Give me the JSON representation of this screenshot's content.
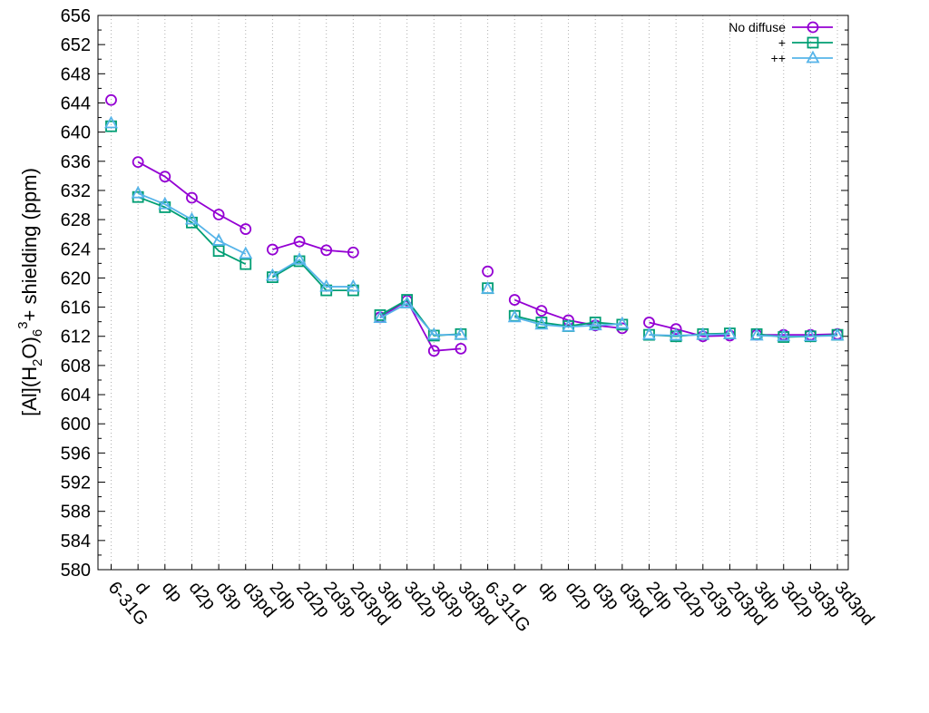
{
  "chart_data": {
    "type": "line",
    "title": "",
    "xlabel": "",
    "ylabel": {
      "base": "[Al](H",
      "sub1": "2",
      "mid": "O)",
      "sub2": "6",
      "sup": "3",
      "tail": "+ shielding (ppm)"
    },
    "ylim": [
      580,
      656
    ],
    "ytick_step": 4,
    "grid": "vertical dotted",
    "legend_position": "top-right",
    "categories": [
      "6-31G",
      "d",
      "dp",
      "d2p",
      "d3p",
      "d3pd",
      "2dp",
      "2d2p",
      "2d3p",
      "2d3pd",
      "3dp",
      "3d2p",
      "3d3p",
      "3d3pd",
      "6-311G",
      "d",
      "dp",
      "d2p",
      "d3p",
      "d3pd",
      "2dp",
      "2d2p",
      "2d3p",
      "2d3pd",
      "3dp",
      "3d2p",
      "3d3p",
      "3d3pd"
    ],
    "segments": [
      [
        0,
        0
      ],
      [
        1,
        5
      ],
      [
        6,
        9
      ],
      [
        10,
        13
      ],
      [
        14,
        14
      ],
      [
        15,
        19
      ],
      [
        20,
        23
      ],
      [
        24,
        27
      ]
    ],
    "series": [
      {
        "name": "No diffuse",
        "color": "#9400d3",
        "marker": "circle",
        "values": [
          644.4,
          635.9,
          633.9,
          631.0,
          628.7,
          626.7,
          623.9,
          625.0,
          623.8,
          623.5,
          614.6,
          616.9,
          610.0,
          610.3,
          620.9,
          617.0,
          615.5,
          614.2,
          613.5,
          613.1,
          613.9,
          613.0,
          612.0,
          612.1,
          612.2,
          612.2,
          612.2,
          612.3
        ]
      },
      {
        "name": "+",
        "color": "#009e73",
        "marker": "square",
        "values": [
          640.8,
          631.1,
          629.7,
          627.6,
          623.7,
          621.9,
          620.1,
          622.3,
          618.3,
          618.3,
          614.9,
          617.0,
          612.1,
          612.3,
          618.6,
          614.8,
          613.9,
          613.4,
          613.9,
          613.6,
          612.2,
          612.0,
          612.3,
          612.4,
          612.3,
          611.9,
          612.0,
          612.2
        ]
      },
      {
        "name": "++",
        "color": "#56b4e9",
        "marker": "triangle",
        "values": [
          641.2,
          631.6,
          630.1,
          628.0,
          625.1,
          623.3,
          620.3,
          622.5,
          618.8,
          618.8,
          614.5,
          616.5,
          612.2,
          612.2,
          618.5,
          614.6,
          613.6,
          613.3,
          613.5,
          613.7,
          612.2,
          612.1,
          612.2,
          612.3,
          612.1,
          612.0,
          612.0,
          612.1
        ]
      }
    ]
  }
}
